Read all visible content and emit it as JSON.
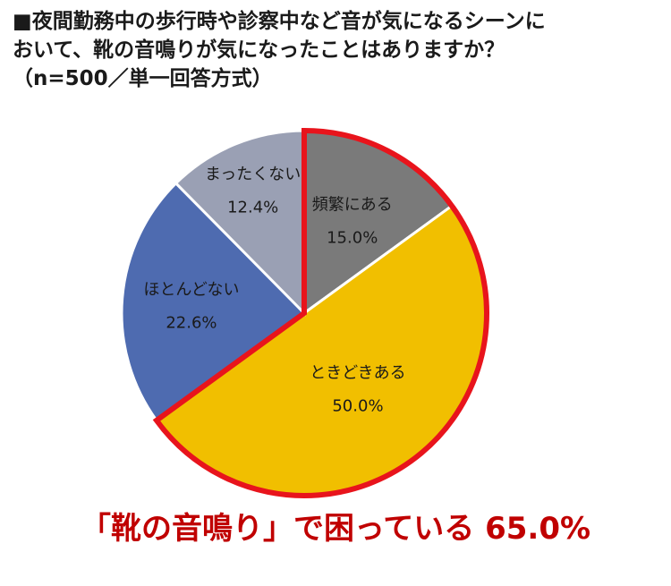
{
  "title": {
    "line1": "■夜間勤務中の歩行時や診察中など音が気になるシーンに",
    "line2": "おいて、靴の音鳴りが気になったことはありますか？",
    "line3": "（n=500／単一回答方式）"
  },
  "chart_data": {
    "type": "pie",
    "categories": [
      "頻繁にある",
      "ときどきある",
      "ほとんどない",
      "まったくない"
    ],
    "values": [
      15.0,
      50.0,
      22.6,
      12.4
    ],
    "value_labels": [
      "15.0%",
      "50.0%",
      "22.6%",
      "12.4%"
    ],
    "colors": [
      "#7a7a7a",
      "#f1bf00",
      "#4e6bb0",
      "#9aa0b4"
    ],
    "highlight": {
      "categories": [
        "頻繁にある",
        "ときどきある"
      ],
      "outline_color": "#e8141c"
    }
  },
  "callout": "「靴の音鳴り」で困っている 65.0%"
}
